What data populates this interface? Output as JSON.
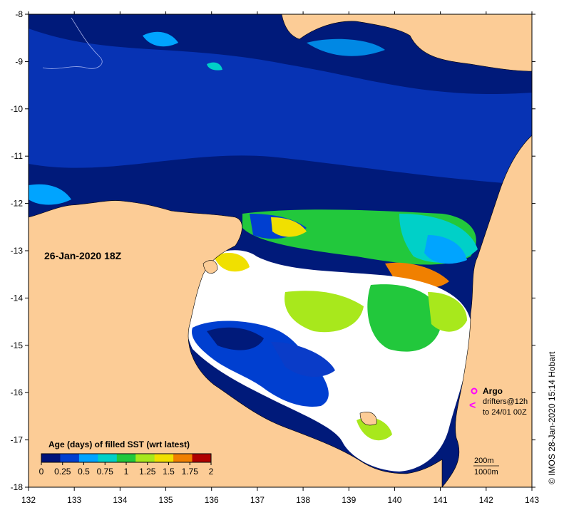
{
  "map": {
    "date_label": "26-Jan-2020 18Z",
    "credit": "© IMOS 28-Jan-2020 15:14 Hobart",
    "x_ticks": [
      "132",
      "133",
      "134",
      "135",
      "136",
      "137",
      "138",
      "139",
      "140",
      "141",
      "142",
      "143"
    ],
    "y_ticks": [
      "-8",
      "-9",
      "-10",
      "-11",
      "-12",
      "-13",
      "-14",
      "-15",
      "-16",
      "-17",
      "-18"
    ],
    "legend": {
      "title": "Age (days) of filled SST (wrt latest)",
      "ticks": [
        "0",
        "0.25",
        "0.5",
        "0.75",
        "1",
        "1.25",
        "1.5",
        "1.75",
        "2"
      ],
      "colors": [
        "#00137a",
        "#003fd0",
        "#00a4ff",
        "#00d0c8",
        "#22c83c",
        "#a8e81c",
        "#f0e000",
        "#f08000",
        "#b00000"
      ]
    },
    "argo": {
      "label": "Argo",
      "drifters_line1": "drifters@12h",
      "drifters_line2": "to 24/01 00Z",
      "symbol": "<"
    },
    "depth": {
      "line1": "200m",
      "line2": "1000m"
    },
    "colors": {
      "land": "#fccc96",
      "ocean_dark": "#001a7a",
      "ocean_blue": "#0a3cc8",
      "no_data": "#ffffff",
      "argo_magenta": "#ff00ff"
    }
  }
}
